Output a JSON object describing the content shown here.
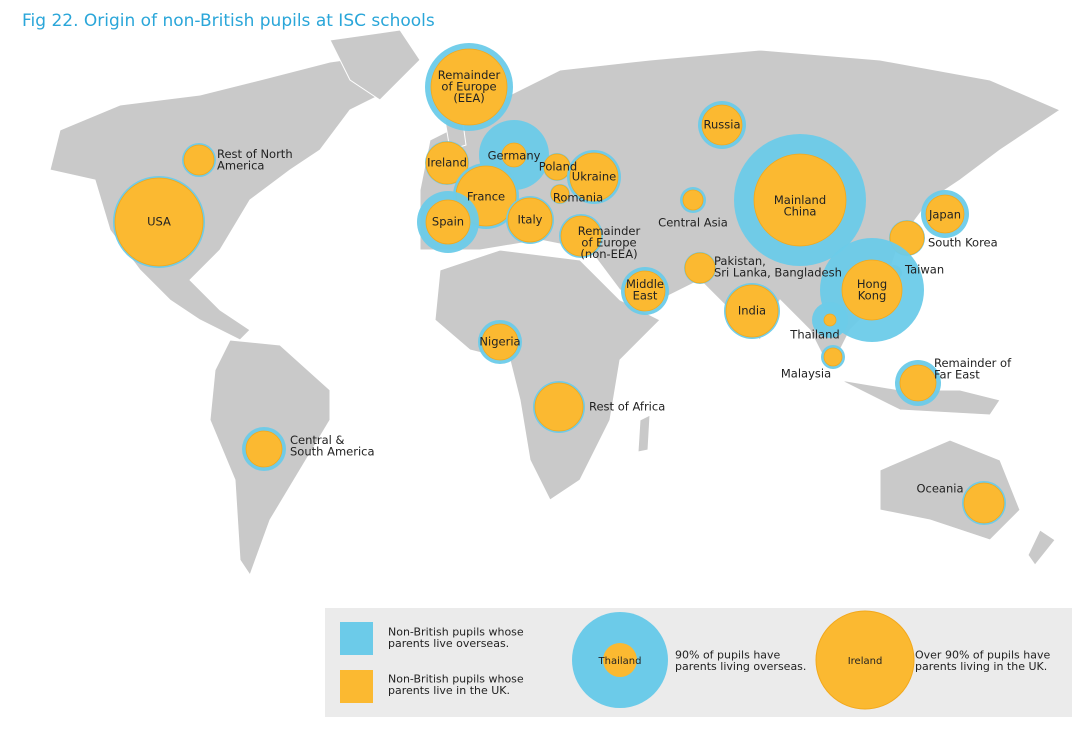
{
  "title": "Fig 22. Origin of non-British pupils at ISC schools",
  "regions": [
    {
      "label": [
        "Remainder",
        "of Europe",
        "(EEA)"
      ]
    },
    {
      "label": [
        "Rest of North",
        "America"
      ]
    },
    {
      "label": [
        "USA"
      ]
    },
    {
      "label": [
        "Ireland"
      ]
    },
    {
      "label": [
        "Germany"
      ]
    },
    {
      "label": [
        "Poland"
      ]
    },
    {
      "label": [
        "Ukraine"
      ]
    },
    {
      "label": [
        "France"
      ]
    },
    {
      "label": [
        "Romania"
      ]
    },
    {
      "label": [
        "Spain"
      ]
    },
    {
      "label": [
        "Italy"
      ]
    },
    {
      "label": [
        "Remainder",
        "of Europe",
        "(non-EEA)"
      ]
    },
    {
      "label": [
        "Russia"
      ]
    },
    {
      "label": [
        "Central Asia"
      ]
    },
    {
      "label": [
        "Mainland",
        "China"
      ]
    },
    {
      "label": [
        "Japan"
      ]
    },
    {
      "label": [
        "South Korea"
      ]
    },
    {
      "label": [
        "Taiwan"
      ]
    },
    {
      "label": [
        "Hong",
        "Kong"
      ]
    },
    {
      "label": [
        "Pakistan,",
        "Sri Lanka, Bangladesh"
      ]
    },
    {
      "label": [
        "Middle",
        "East"
      ]
    },
    {
      "label": [
        "India"
      ]
    },
    {
      "label": [
        "Thailand"
      ]
    },
    {
      "label": [
        "Malaysia"
      ]
    },
    {
      "label": [
        "Remainder of",
        "Far East"
      ]
    },
    {
      "label": [
        "Nigeria"
      ]
    },
    {
      "label": [
        "Rest of Africa"
      ]
    },
    {
      "label": [
        "Central &",
        "South America"
      ]
    },
    {
      "label": [
        "Oceania"
      ]
    }
  ],
  "legend": {
    "overseas": [
      "Non-British pupils whose",
      "parents live overseas."
    ],
    "uk": [
      "Non-British pupils whose",
      "parents live in the UK."
    ],
    "example_overseas": {
      "label": "Thailand",
      "text": [
        "90% of pupils have",
        "parents living overseas."
      ]
    },
    "example_uk": {
      "label": "Ireland",
      "text": [
        "Over 90% of pupils have",
        "parents living in the UK."
      ]
    }
  }
}
